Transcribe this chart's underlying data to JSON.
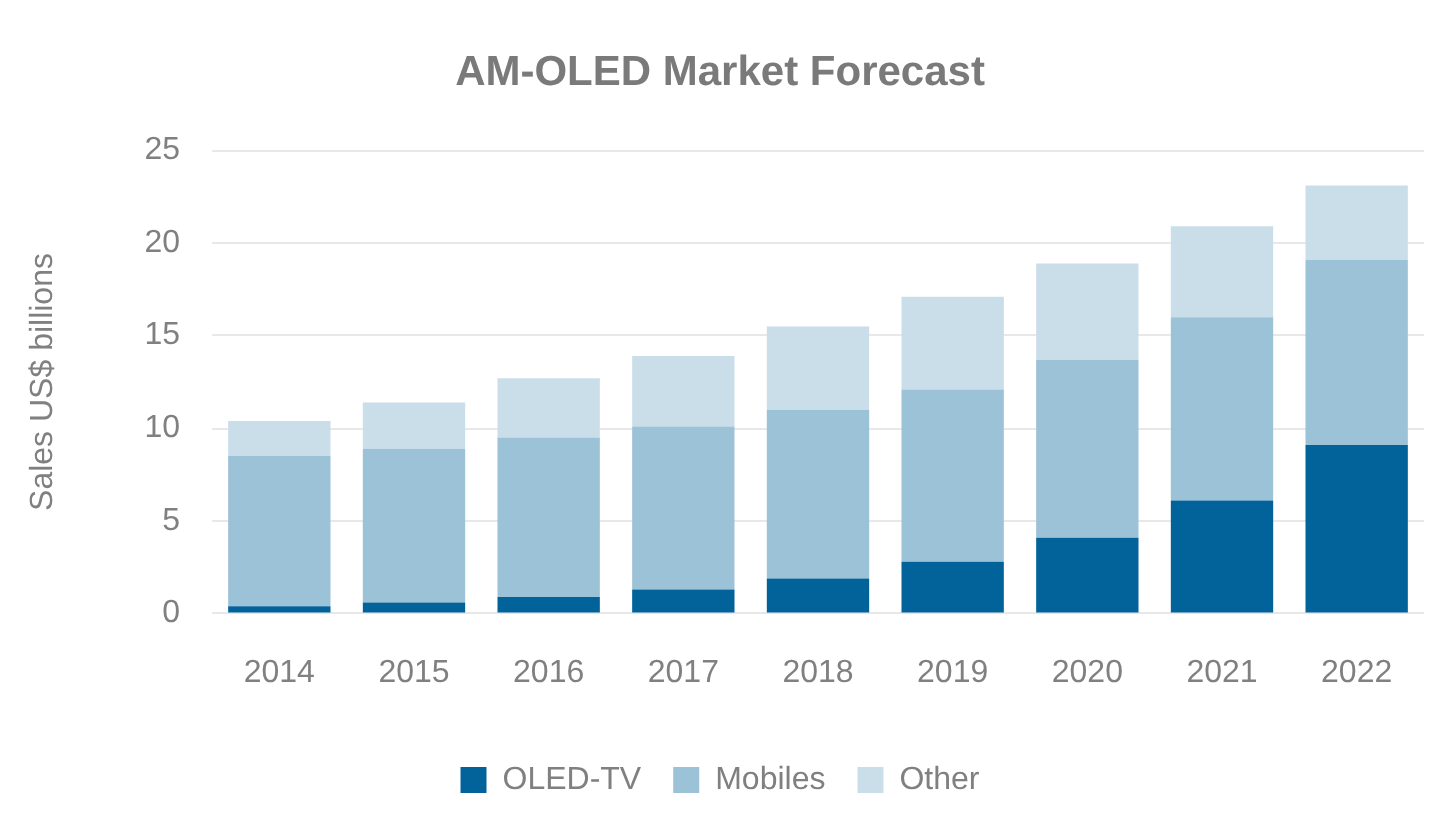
{
  "chart_data": {
    "type": "bar",
    "title": "AM-OLED Market Forecast",
    "ylabel": "Sales US$ billions",
    "categories": [
      "2014",
      "2015",
      "2016",
      "2017",
      "2018",
      "2019",
      "2020",
      "2021",
      "2022"
    ],
    "series": [
      {
        "name": "OLED-TV",
        "color": "#02639b",
        "values": [
          0.4,
          0.6,
          0.9,
          1.3,
          1.9,
          2.8,
          4.1,
          6.1,
          9.1
        ]
      },
      {
        "name": "Mobiles",
        "color": "#9cc2d7",
        "values": [
          8.1,
          8.3,
          8.6,
          8.8,
          9.1,
          9.3,
          9.6,
          9.9,
          10.0
        ]
      },
      {
        "name": "Other",
        "color": "#cadeea",
        "values": [
          1.9,
          2.5,
          3.2,
          3.8,
          4.5,
          5.0,
          5.2,
          4.9,
          4.0
        ]
      }
    ],
    "stacked": true,
    "ylim": [
      0,
      25
    ],
    "yticks": [
      0,
      5,
      10,
      15,
      20,
      25
    ],
    "grid": "y",
    "legend": "bottom"
  }
}
